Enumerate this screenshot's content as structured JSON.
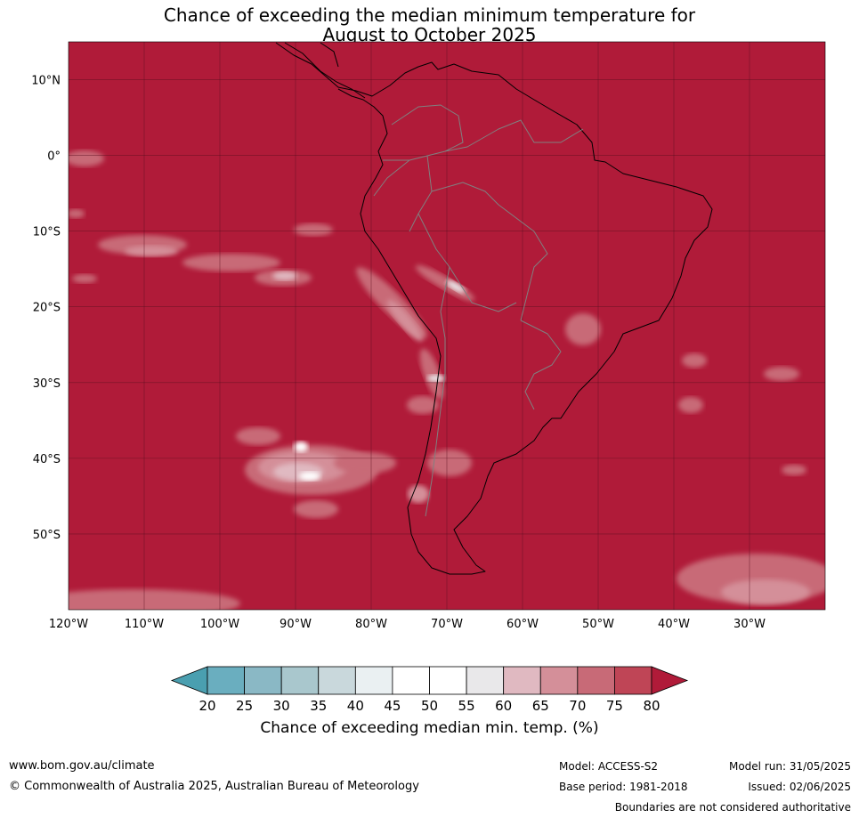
{
  "title_line1": "Chance of exceeding the median minimum temperature for",
  "title_line2": "August to October 2025",
  "lat_labels": [
    {
      "value": 10,
      "text": "10°N"
    },
    {
      "value": 0,
      "text": "0°"
    },
    {
      "value": -10,
      "text": "10°S"
    },
    {
      "value": -20,
      "text": "20°S"
    },
    {
      "value": -30,
      "text": "30°S"
    },
    {
      "value": -40,
      "text": "40°S"
    },
    {
      "value": -50,
      "text": "50°S"
    }
  ],
  "lon_labels": [
    {
      "value": -120,
      "text": "120°W"
    },
    {
      "value": -110,
      "text": "110°W"
    },
    {
      "value": -100,
      "text": "100°W"
    },
    {
      "value": -90,
      "text": "90°W"
    },
    {
      "value": -80,
      "text": "80°W"
    },
    {
      "value": -70,
      "text": "70°W"
    },
    {
      "value": -60,
      "text": "60°W"
    },
    {
      "value": -50,
      "text": "50°W"
    },
    {
      "value": -40,
      "text": "40°W"
    },
    {
      "value": -30,
      "text": "30°W"
    }
  ],
  "map_extent": {
    "lon": [
      -120,
      -20
    ],
    "lat": [
      -60,
      15
    ]
  },
  "colorbar": {
    "ticks": [
      "20",
      "25",
      "30",
      "35",
      "40",
      "45",
      "50",
      "55",
      "60",
      "65",
      "70",
      "75",
      "80"
    ],
    "colors": [
      "#6aaebf",
      "#8ab8c5",
      "#a9c7cd",
      "#c9d8dc",
      "#eaf0f2",
      "#ffffff",
      "#ffffff",
      "#e9e8ea",
      "#e0b9c1",
      "#d48f99",
      "#c86a77",
      "#bf4556",
      "#b01b39"
    ],
    "low_extend_color": "#4a9fb0",
    "high_extend_color": "#b01b39",
    "label": "Chance of exceeding median min. temp. (%)"
  },
  "colors": {
    "dominant": "#b01b39",
    "grid": "#5a0f1f",
    "coast": "#000000",
    "border": "#808080"
  },
  "footer": {
    "url": "www.bom.gov.au/climate",
    "copyright": "© Commonwealth of Australia 2025, Australian Bureau of Meteorology",
    "model": "Model: ACCESS-S2",
    "base_period": "Base period: 1981-2018",
    "model_run": "Model run: 31/05/2025",
    "issued": "Issued: 02/06/2025",
    "disclaimer": "Boundaries are not considered authoritative"
  }
}
